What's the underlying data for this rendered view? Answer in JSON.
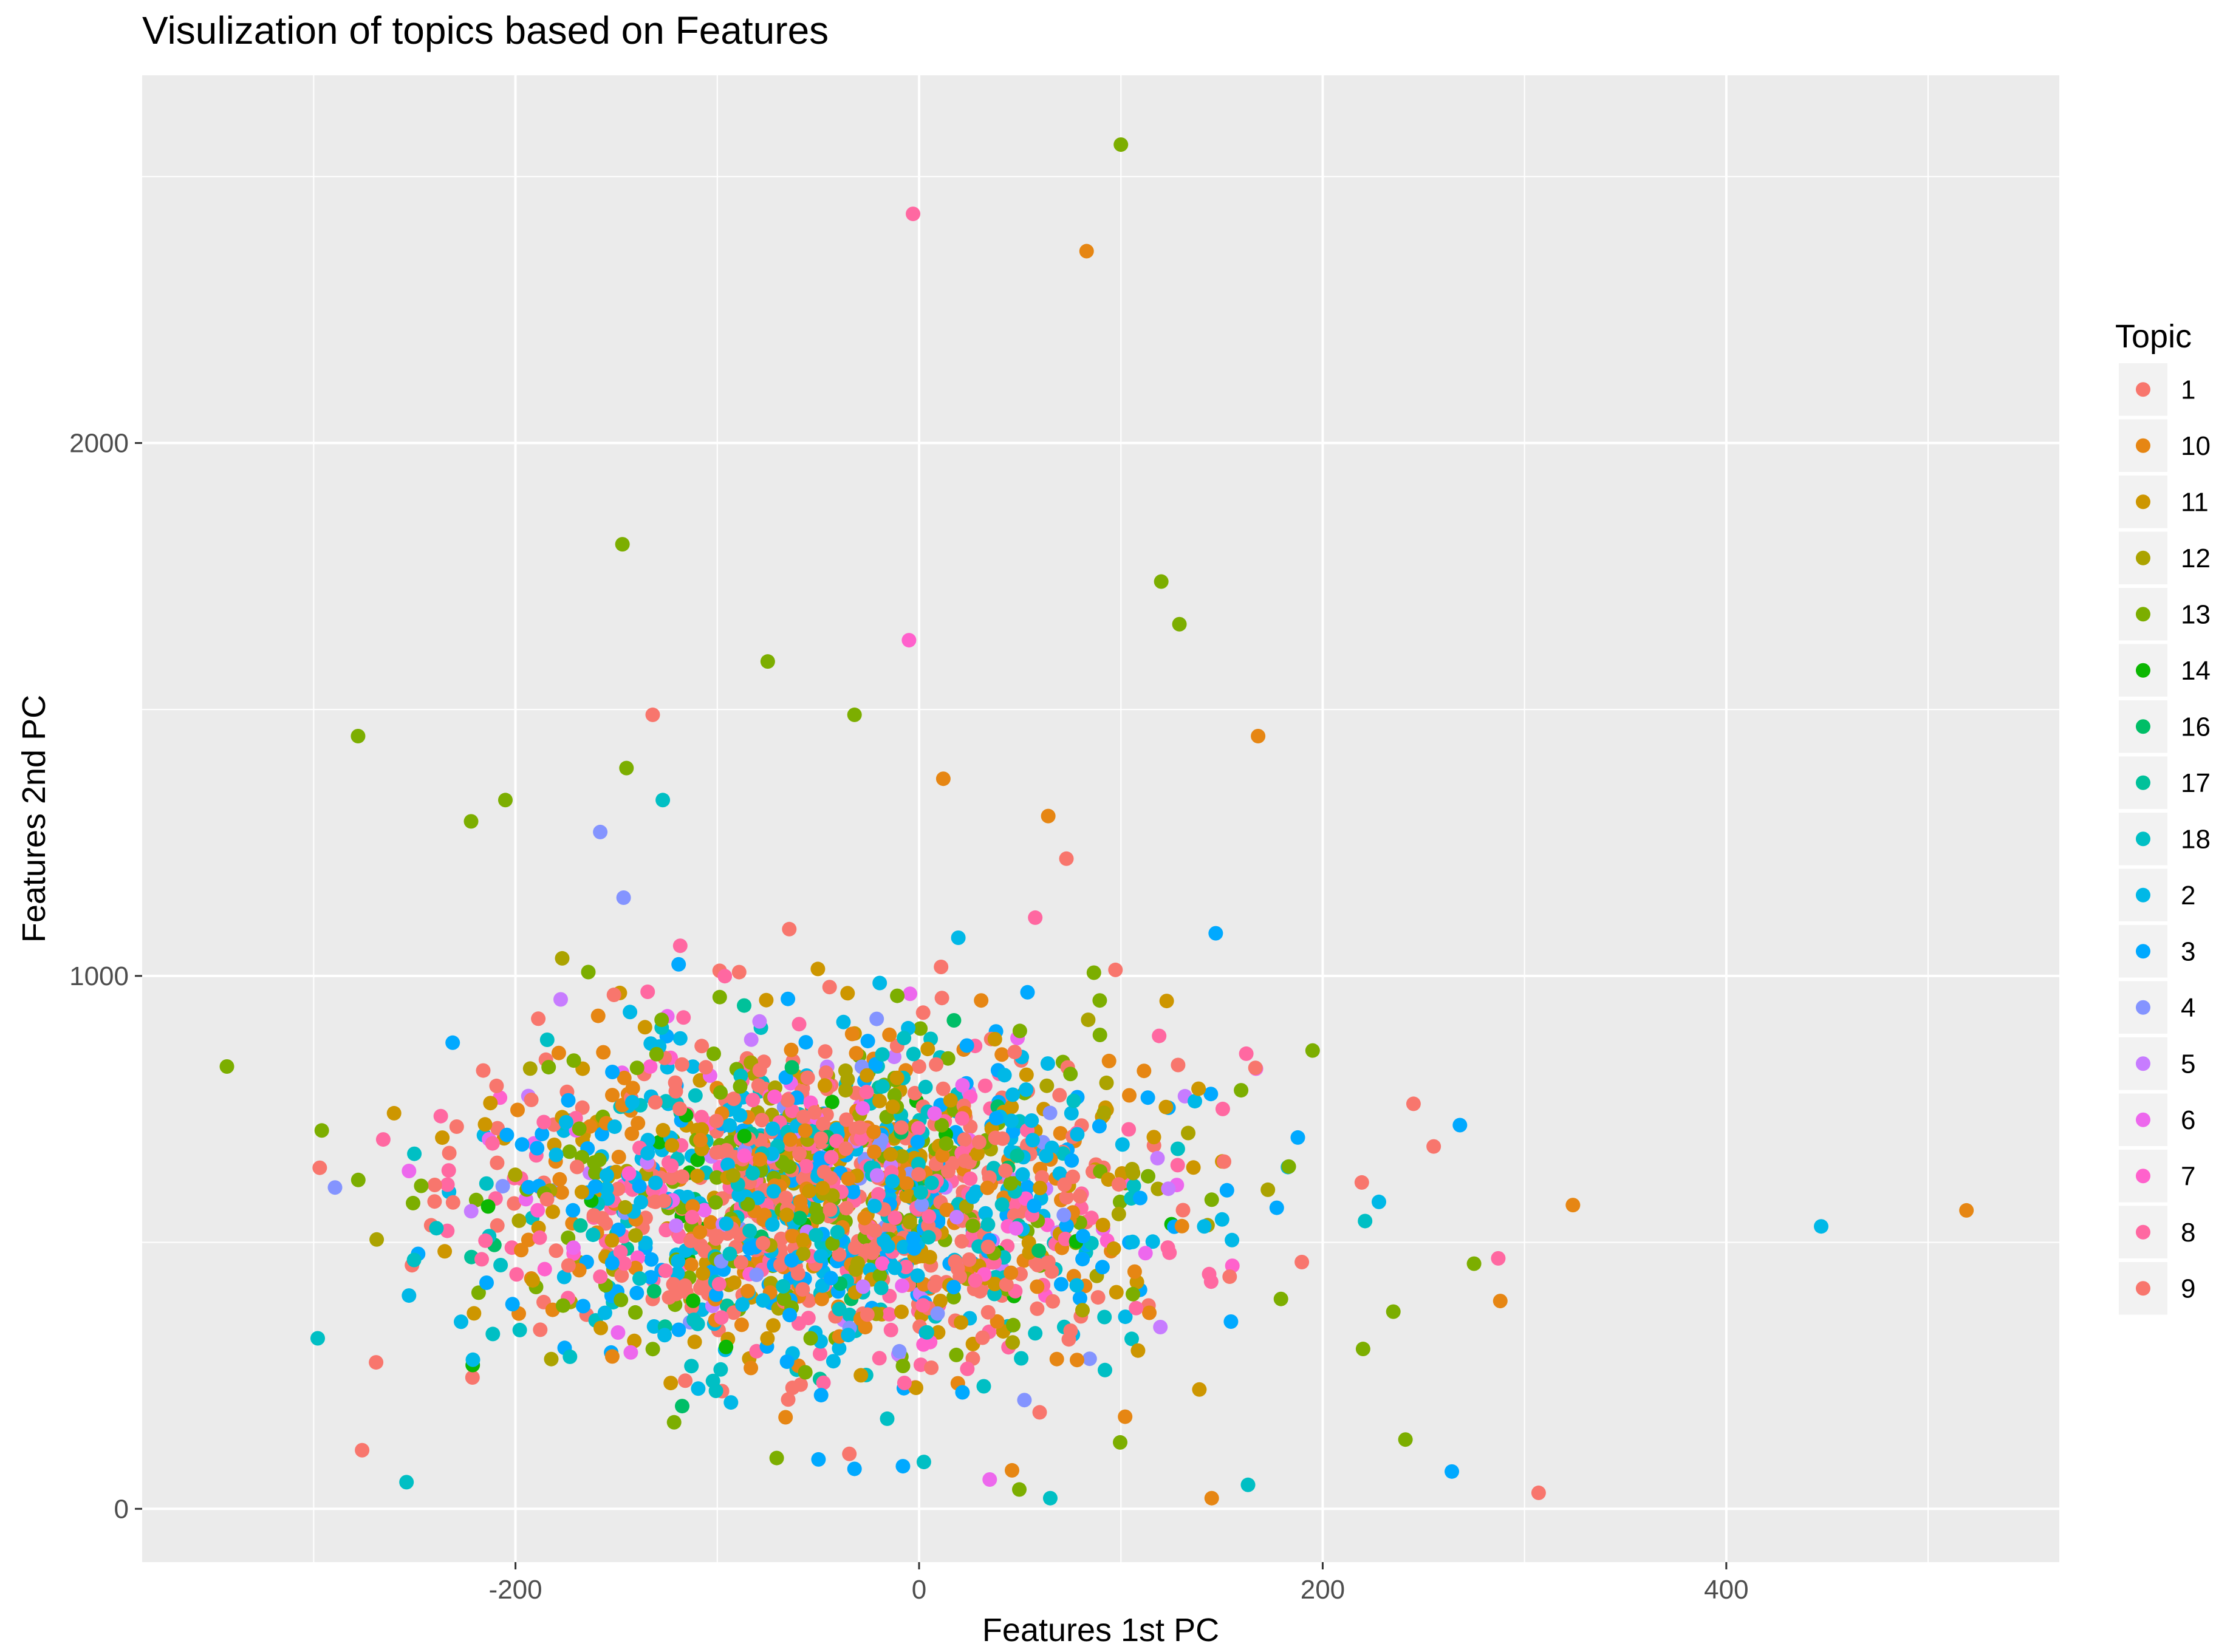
{
  "chart_data": {
    "type": "scatter",
    "title": "Visulization of topics based on Features",
    "xlabel": "Features 1st PC",
    "ylabel": "Features 2nd PC",
    "xlim": [
      -385,
      565
    ],
    "ylim": [
      -100,
      2690
    ],
    "x_ticks": [
      -200,
      0,
      200,
      400
    ],
    "y_ticks": [
      0,
      1000,
      2000
    ],
    "x_tick_labels": [
      "-200",
      "0",
      "200",
      "400"
    ],
    "y_tick_labels": [
      "0",
      "1000",
      "2000"
    ],
    "grid": true,
    "background": "#ebebeb",
    "legend": {
      "title": "Topic",
      "position": "right",
      "entries": [
        {
          "label": "1",
          "color": "#F8766D"
        },
        {
          "label": "10",
          "color": "#E68613"
        },
        {
          "label": "11",
          "color": "#CD9600"
        },
        {
          "label": "12",
          "color": "#ABA300"
        },
        {
          "label": "13",
          "color": "#7CAE00"
        },
        {
          "label": "14",
          "color": "#0CB702"
        },
        {
          "label": "16",
          "color": "#00BE67"
        },
        {
          "label": "17",
          "color": "#00C19A"
        },
        {
          "label": "18",
          "color": "#00BFC4"
        },
        {
          "label": "2",
          "color": "#00B8E7"
        },
        {
          "label": "3",
          "color": "#00A9FF"
        },
        {
          "label": "4",
          "color": "#8494FF"
        },
        {
          "label": "5",
          "color": "#C77CFF"
        },
        {
          "label": "6",
          "color": "#ED68ED"
        },
        {
          "label": "7",
          "color": "#FF61CC"
        },
        {
          "label": "8",
          "color": "#FF68A1"
        },
        {
          "label": "9",
          "color": "#F8766D"
        }
      ]
    },
    "outliers": [
      {
        "x": 100,
        "y": 2560,
        "topic": "13"
      },
      {
        "x": -3,
        "y": 2430,
        "topic": "8"
      },
      {
        "x": 83,
        "y": 2360,
        "topic": "10"
      },
      {
        "x": -147,
        "y": 1810,
        "topic": "13"
      },
      {
        "x": 120,
        "y": 1740,
        "topic": "13"
      },
      {
        "x": 129,
        "y": 1660,
        "topic": "13"
      },
      {
        "x": -5,
        "y": 1630,
        "topic": "7"
      },
      {
        "x": -75,
        "y": 1590,
        "topic": "13"
      },
      {
        "x": -132,
        "y": 1490,
        "topic": "9"
      },
      {
        "x": -32,
        "y": 1490,
        "topic": "13"
      },
      {
        "x": 168,
        "y": 1450,
        "topic": "10"
      },
      {
        "x": -278,
        "y": 1450,
        "topic": "13"
      },
      {
        "x": -145,
        "y": 1390,
        "topic": "13"
      },
      {
        "x": -127,
        "y": 1330,
        "topic": "18"
      },
      {
        "x": 12,
        "y": 1370,
        "topic": "10"
      },
      {
        "x": -205,
        "y": 1330,
        "topic": "13"
      },
      {
        "x": 64,
        "y": 1300,
        "topic": "10"
      },
      {
        "x": -158,
        "y": 1270,
        "topic": "4"
      },
      {
        "x": -222,
        "y": 1290,
        "topic": "13"
      },
      {
        "x": 73,
        "y": 1220,
        "topic": "9"
      },
      {
        "x": 147,
        "y": 1080,
        "topic": "3"
      },
      {
        "x": -343,
        "y": 830,
        "topic": "13"
      },
      {
        "x": -296,
        "y": 710,
        "topic": "13"
      },
      {
        "x": -297,
        "y": 640,
        "topic": "9"
      },
      {
        "x": -298,
        "y": 320,
        "topic": "18"
      },
      {
        "x": -276,
        "y": 110,
        "topic": "9"
      },
      {
        "x": -254,
        "y": 50,
        "topic": "18"
      },
      {
        "x": 519,
        "y": 560,
        "topic": "10"
      },
      {
        "x": 447,
        "y": 530,
        "topic": "2"
      },
      {
        "x": 324,
        "y": 570,
        "topic": "10"
      },
      {
        "x": 307,
        "y": 30,
        "topic": "9"
      },
      {
        "x": 264,
        "y": 70,
        "topic": "3"
      },
      {
        "x": 241,
        "y": 130,
        "topic": "13"
      },
      {
        "x": 268,
        "y": 720,
        "topic": "3"
      },
      {
        "x": 145,
        "y": 20,
        "topic": "10"
      },
      {
        "x": 65,
        "y": 20,
        "topic": "18"
      },
      {
        "x": 35,
        "y": 55,
        "topic": "6"
      },
      {
        "x": -32,
        "y": 75,
        "topic": "3"
      },
      {
        "x": -8,
        "y": 80,
        "topic": "3"
      },
      {
        "x": 163,
        "y": 45,
        "topic": "18"
      },
      {
        "x": 255,
        "y": 680,
        "topic": "9"
      },
      {
        "x": 245,
        "y": 760,
        "topic": "9"
      },
      {
        "x": 287,
        "y": 470,
        "topic": "8"
      },
      {
        "x": 275,
        "y": 460,
        "topic": "13"
      },
      {
        "x": 288,
        "y": 390,
        "topic": "10"
      },
      {
        "x": 221,
        "y": 540,
        "topic": "18"
      },
      {
        "x": 220,
        "y": 300,
        "topic": "13"
      },
      {
        "x": 235,
        "y": 370,
        "topic": "13"
      },
      {
        "x": 195,
        "y": 860,
        "topic": "13"
      }
    ],
    "cluster": {
      "count": 1900,
      "center_x": -45,
      "center_y": 590,
      "spread_x": 85,
      "spread_y": 160,
      "x_range": [
        -300,
        330
      ],
      "y_range": [
        30,
        1320
      ]
    }
  }
}
